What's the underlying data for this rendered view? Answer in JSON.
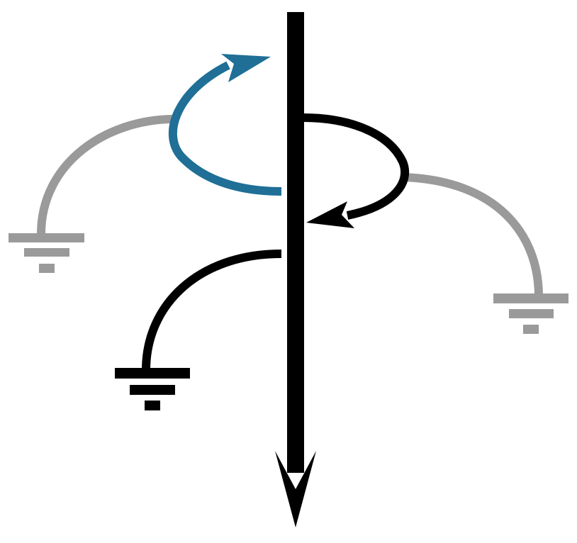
{
  "diagram": {
    "kind": "current-carrying conductor with magnetic field loops and ground connections",
    "colors": {
      "background": "#ffffff",
      "conductor": "#000000",
      "field_loop_blue": "#1f6f96",
      "field_loop_black": "#000000",
      "ground_gray": "#9a9a9a",
      "ground_black": "#000000"
    },
    "icons": [
      "conductor-arrow-icon",
      "blue-rotation-arrow-icon",
      "black-rotation-arrow-icon",
      "ground-symbol-icon"
    ]
  }
}
